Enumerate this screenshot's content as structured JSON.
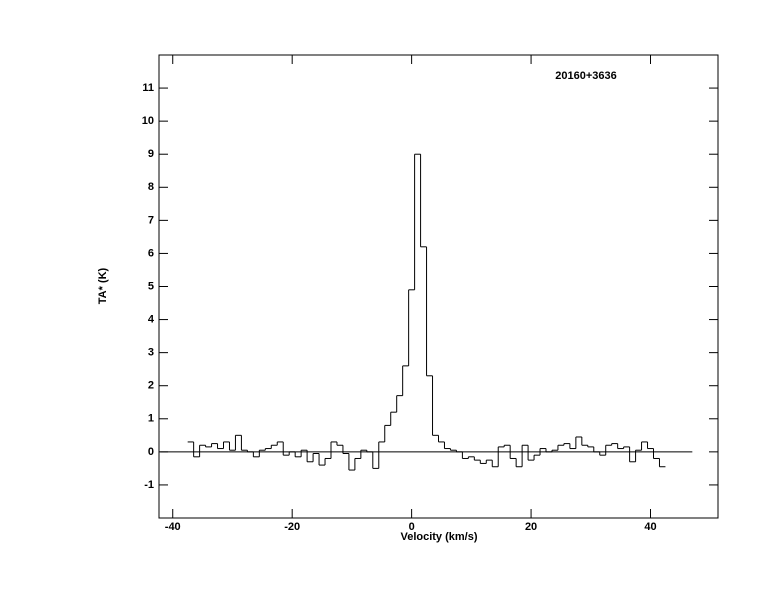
{
  "chart_data": {
    "type": "step",
    "annotation": "20160+3636",
    "x_label": "Velocity (km/s)",
    "y_label": "TA* (K)",
    "xlim": [
      -42.3,
      51.3
    ],
    "ylim": [
      -2,
      12
    ],
    "xticks": [
      -40,
      -20,
      0,
      20,
      40
    ],
    "yticks": [
      -1,
      0,
      1,
      2,
      3,
      4,
      5,
      6,
      7,
      8,
      9,
      10,
      11
    ],
    "color": "#000000",
    "zero_line": {
      "x": [
        -42.1,
        47
      ],
      "y": 0,
      "color": "#000000"
    },
    "x": [
      -37,
      -36,
      -35,
      -34,
      -33,
      -32,
      -31,
      -30,
      -29,
      -28,
      -27,
      -26,
      -25,
      -24,
      -23,
      -22,
      -21,
      -20,
      -19,
      -18,
      -17,
      -16,
      -15,
      -14,
      -13,
      -12,
      -11,
      -10,
      -9,
      -8,
      -7,
      -6,
      -5,
      -4,
      -3,
      -2,
      -1,
      0,
      1,
      2,
      3,
      4,
      5,
      6,
      7,
      8,
      9,
      10,
      11,
      12,
      13,
      14,
      15,
      16,
      17,
      18,
      19,
      20,
      21,
      22,
      23,
      24,
      25,
      26,
      27,
      28,
      29,
      30,
      31,
      32,
      33,
      34,
      35,
      36,
      37,
      38,
      39,
      40,
      41,
      42
    ],
    "values": [
      0.3,
      -0.15,
      0.2,
      0.15,
      0.25,
      0.1,
      0.3,
      0.05,
      0.5,
      0.05,
      0.0,
      -0.15,
      0.05,
      0.1,
      0.2,
      0.3,
      -0.1,
      0.0,
      -0.15,
      0.05,
      -0.3,
      -0.05,
      -0.4,
      -0.2,
      0.3,
      0.2,
      -0.05,
      -0.55,
      -0.2,
      0.05,
      0.0,
      -0.5,
      0.3,
      0.8,
      1.2,
      1.7,
      2.6,
      4.9,
      9.0,
      6.2,
      2.3,
      0.5,
      0.3,
      0.1,
      0.05,
      0.0,
      -0.2,
      -0.15,
      -0.25,
      -0.35,
      -0.25,
      -0.45,
      0.15,
      0.2,
      -0.2,
      -0.45,
      0.2,
      -0.25,
      -0.1,
      0.1,
      0.0,
      0.05,
      0.2,
      0.25,
      0.1,
      0.45,
      0.2,
      0.15,
      0.0,
      -0.1,
      0.2,
      0.25,
      0.1,
      0.15,
      -0.3,
      0.05,
      0.3,
      0.1,
      -0.2,
      -0.45
    ]
  }
}
